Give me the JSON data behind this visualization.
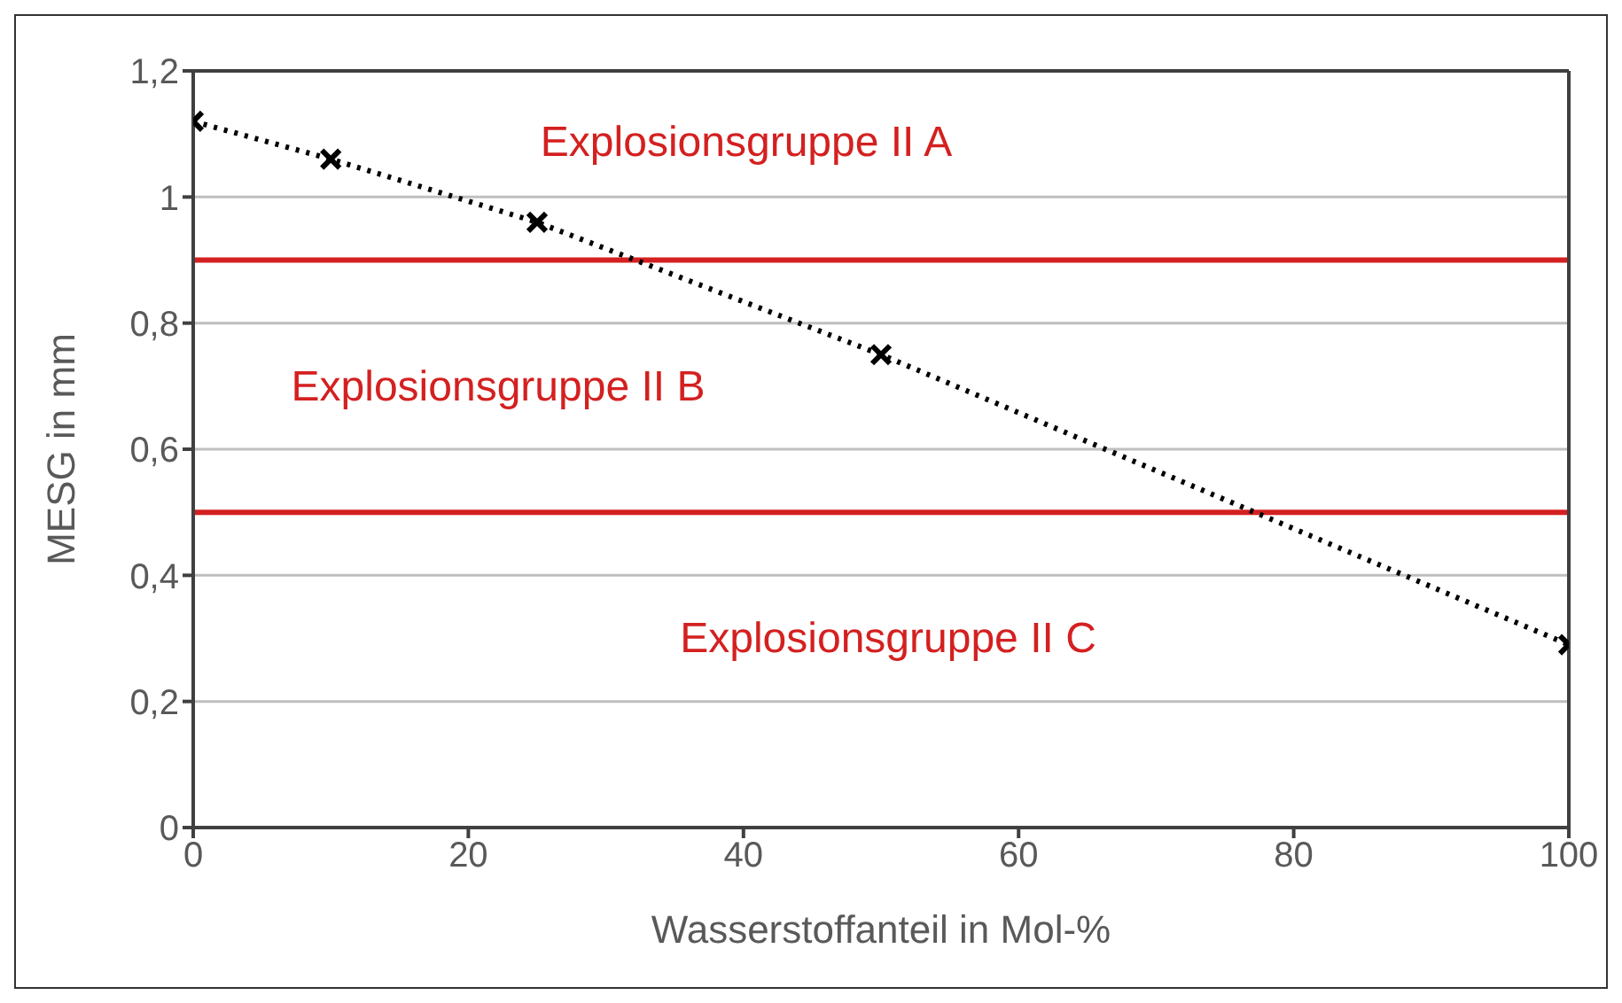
{
  "chart_data": {
    "type": "line",
    "xlabel": "Wasserstoffanteil in Mol-%",
    "ylabel": "MESG in mm",
    "x": [
      0,
      10,
      25,
      50,
      100
    ],
    "series": [
      {
        "color": "#000000",
        "values": [
          1.12,
          1.06,
          0.96,
          0.75,
          0.29
        ]
      }
    ],
    "marker": "cross",
    "line_style": "dotted",
    "grid": "y",
    "xlim": [
      0,
      100
    ],
    "xticks": [
      0,
      20,
      40,
      60,
      80,
      100
    ],
    "ylim": [
      0,
      1.2
    ],
    "yticks": [
      0,
      {
        "value": 0.2,
        "label": "0,2"
      },
      {
        "value": 0.4,
        "label": "0,4"
      },
      {
        "value": 0.6,
        "label": "0,6"
      },
      {
        "value": 0.8,
        "label": "0,8"
      },
      1,
      {
        "value": 1.2,
        "label": "1,2"
      }
    ],
    "ref_lines": [
      {
        "axis": "y",
        "value": 0.9,
        "color": "#d42020"
      },
      {
        "axis": "y",
        "value": 0.5,
        "color": "#d42020"
      }
    ],
    "annotations": [
      "Explosionsgruppe II A",
      "Explosionsgruppe II B",
      "Explosionsgruppe II C"
    ]
  }
}
